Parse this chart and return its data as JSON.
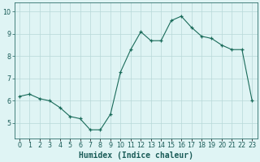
{
  "title": "",
  "xlabel": "Humidex (Indice chaleur)",
  "ylabel": "",
  "x": [
    0,
    1,
    2,
    3,
    4,
    5,
    6,
    7,
    8,
    9,
    10,
    11,
    12,
    13,
    14,
    15,
    16,
    17,
    18,
    19,
    20,
    21,
    22,
    23
  ],
  "y": [
    6.2,
    6.3,
    6.1,
    6.0,
    5.7,
    5.3,
    5.2,
    4.7,
    4.7,
    5.4,
    7.3,
    8.3,
    9.1,
    8.7,
    8.7,
    9.6,
    9.8,
    9.3,
    8.9,
    8.8,
    8.5,
    8.3,
    8.3,
    6.0
  ],
  "line_color": "#1a6b5a",
  "marker": "+",
  "markersize": 3,
  "linewidth": 0.8,
  "xlim": [
    -0.5,
    23.5
  ],
  "ylim": [
    4.3,
    10.4
  ],
  "yticks": [
    5,
    6,
    7,
    8,
    9,
    10
  ],
  "xtick_labels": [
    "0",
    "1",
    "2",
    "3",
    "4",
    "5",
    "6",
    "7",
    "8",
    "9",
    "10",
    "11",
    "12",
    "13",
    "14",
    "15",
    "16",
    "17",
    "18",
    "19",
    "20",
    "21",
    "22",
    "23"
  ],
  "bg_color": "#dff4f4",
  "grid_color": "#b8d8d8",
  "axis_color": "#2c6e6a",
  "tick_color": "#1a5c58",
  "label_color": "#1a5c58",
  "xlabel_fontsize": 7.0,
  "tick_fontsize": 5.8
}
